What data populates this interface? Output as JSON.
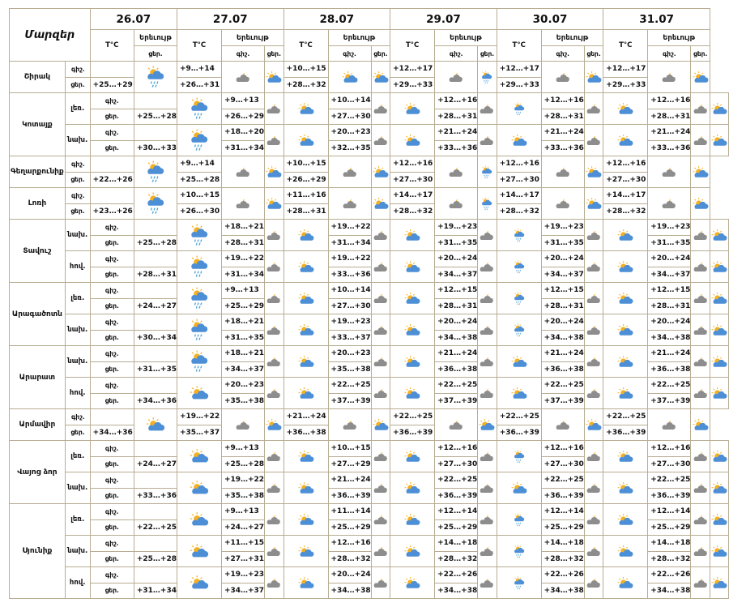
{
  "header": {
    "regions_title": "Մարզեր",
    "temp_label": "T°C",
    "phenomenon_label": "Երեւույթ",
    "night_label": "գիշ.",
    "day_label": "ցեր.",
    "dates": [
      "26.07",
      "27.07",
      "28.07",
      "29.07",
      "30.07",
      "31.07"
    ]
  },
  "regions": [
    {
      "name": "Շիրակ",
      "rows": [
        {
          "sub": "",
          "label": "գիշ.",
          "temps": [
            "",
            "+9…+14",
            "+10…+15",
            "+12…+17",
            "+12…+17",
            "+12…+17"
          ],
          "icons": [
            "sun-cloud-rain-icon",
            "cloud-moon-icon",
            "sun-cloud-icon",
            "cloud-moon-icon",
            "cloud-moon-icon",
            "cloud-moon-icon"
          ]
        },
        {
          "sub": "",
          "label": "ցեր.",
          "temps": [
            "+25…+29",
            "+26…+31",
            "+28…+32",
            "+29…+33",
            "+29…+33",
            "+29…+33"
          ],
          "icons": [
            "",
            "sun-cloud-icon",
            "sun-cloud-icon",
            "sun-cloud-rain-icon",
            "sun-cloud-icon",
            "sun-cloud-icon"
          ]
        }
      ]
    },
    {
      "name": "Կոտայք",
      "rows": [
        {
          "sub": "լեռ.",
          "label": "գիշ.",
          "temps": [
            "",
            "+9…+13",
            "+10…+14",
            "+12…+16",
            "+12…+16",
            "+12…+16"
          ],
          "icons": [
            "sun-cloud-rain-icon",
            "cloud-moon-icon",
            "cloud-moon-icon",
            "cloud-moon-icon",
            "cloud-moon-icon",
            "cloud-moon-icon"
          ]
        },
        {
          "sub": "",
          "label": "ցեր.",
          "temps": [
            "+25…+28",
            "+26…+29",
            "+27…+30",
            "+28…+31",
            "+28…+31",
            "+28…+31"
          ],
          "icons": [
            "",
            "sun-cloud-icon",
            "sun-cloud-icon",
            "sun-cloud-rain-icon",
            "sun-cloud-icon",
            "sun-cloud-icon"
          ]
        },
        {
          "sub": "նախ.",
          "label": "գիշ.",
          "temps": [
            "",
            "+18…+20",
            "+20…+23",
            "+21…+24",
            "+21…+24",
            "+21…+24"
          ],
          "icons": [
            "sun-cloud-rain-icon",
            "cloud-moon-icon",
            "cloud-moon-icon",
            "cloud-moon-icon",
            "cloud-moon-icon",
            "cloud-moon-icon"
          ]
        },
        {
          "sub": "",
          "label": "ցեր.",
          "temps": [
            "+30…+33",
            "+31…+34",
            "+32…+35",
            "+33…+36",
            "+33…+36",
            "+33…+36"
          ],
          "icons": [
            "",
            "sun-cloud-icon",
            "sun-cloud-icon",
            "sun-cloud-icon",
            "sun-cloud-icon",
            "sun-cloud-icon"
          ]
        }
      ]
    },
    {
      "name": "Գեղարքունիք",
      "rows": [
        {
          "sub": "",
          "label": "գիշ.",
          "temps": [
            "",
            "+9…+14",
            "+10…+15",
            "+12…+16",
            "+12…+16",
            "+12…+16"
          ],
          "icons": [
            "sun-cloud-rain-icon",
            "cloud-moon-icon",
            "cloud-moon-icon",
            "cloud-moon-icon",
            "cloud-moon-icon",
            "cloud-moon-icon"
          ]
        },
        {
          "sub": "",
          "label": "ցեր.",
          "temps": [
            "+22…+26",
            "+25…+28",
            "+26…+29",
            "+27…+30",
            "+27…+30",
            "+27…+30"
          ],
          "icons": [
            "",
            "sun-cloud-icon",
            "sun-cloud-icon",
            "sun-cloud-rain-icon",
            "sun-cloud-icon",
            "sun-cloud-icon"
          ]
        }
      ]
    },
    {
      "name": "Լոռի",
      "rows": [
        {
          "sub": "",
          "label": "գիշ.",
          "temps": [
            "",
            "+10…+15",
            "+11…+16",
            "+14…+17",
            "+14…+17",
            "+14…+17"
          ],
          "icons": [
            "sun-cloud-rain-icon",
            "cloud-moon-icon",
            "cloud-moon-icon",
            "cloud-moon-icon",
            "cloud-moon-icon",
            "cloud-moon-icon"
          ]
        },
        {
          "sub": "",
          "label": "ցեր.",
          "temps": [
            "+23…+26",
            "+26…+30",
            "+28…+31",
            "+28…+32",
            "+28…+32",
            "+28…+32"
          ],
          "icons": [
            "",
            "sun-cloud-icon",
            "sun-cloud-icon",
            "sun-cloud-rain-icon",
            "sun-cloud-icon",
            "sun-cloud-icon"
          ]
        }
      ]
    },
    {
      "name": "Տավուշ",
      "rows": [
        {
          "sub": "նախ.",
          "label": "գիշ.",
          "temps": [
            "",
            "+18…+21",
            "+19…+22",
            "+19…+23",
            "+19…+23",
            "+19…+23"
          ],
          "icons": [
            "sun-cloud-rain-icon",
            "cloud-moon-icon",
            "cloud-moon-icon",
            "cloud-moon-icon",
            "cloud-moon-icon",
            "cloud-moon-icon"
          ]
        },
        {
          "sub": "",
          "label": "ցեր.",
          "temps": [
            "+25…+28",
            "+28…+31",
            "+31…+34",
            "+31…+35",
            "+31…+35",
            "+31…+35"
          ],
          "icons": [
            "",
            "sun-cloud-icon",
            "sun-cloud-icon",
            "sun-cloud-rain-icon",
            "sun-cloud-icon",
            "sun-cloud-icon"
          ]
        },
        {
          "sub": "հով.",
          "label": "գիշ.",
          "temps": [
            "",
            "+19…+22",
            "+19…+22",
            "+20…+24",
            "+20…+24",
            "+20…+24"
          ],
          "icons": [
            "sun-cloud-rain-icon",
            "cloud-moon-icon",
            "cloud-moon-icon",
            "cloud-moon-icon",
            "cloud-moon-icon",
            "cloud-moon-icon"
          ]
        },
        {
          "sub": "",
          "label": "ցեր.",
          "temps": [
            "+28…+31",
            "+31…+34",
            "+33…+36",
            "+34…+37",
            "+34…+37",
            "+34…+37"
          ],
          "icons": [
            "",
            "sun-cloud-icon",
            "sun-cloud-icon",
            "sun-cloud-rain-icon",
            "sun-cloud-icon",
            "sun-cloud-icon"
          ]
        }
      ]
    },
    {
      "name": "Արագածոտն",
      "rows": [
        {
          "sub": "լեռ.",
          "label": "գիշ.",
          "temps": [
            "",
            "+9…+13",
            "+10…+14",
            "+12…+15",
            "+12…+15",
            "+12…+15"
          ],
          "icons": [
            "sun-cloud-rain-icon",
            "cloud-moon-icon",
            "cloud-moon-icon",
            "cloud-moon-icon",
            "cloud-moon-icon",
            "cloud-moon-icon"
          ]
        },
        {
          "sub": "",
          "label": "ցեր.",
          "temps": [
            "+24…+27",
            "+25…+29",
            "+27…+30",
            "+28…+31",
            "+28…+31",
            "+28…+31"
          ],
          "icons": [
            "",
            "sun-cloud-icon",
            "sun-cloud-icon",
            "sun-cloud-rain-icon",
            "sun-cloud-icon",
            "sun-cloud-icon"
          ]
        },
        {
          "sub": "նախ.",
          "label": "գիշ.",
          "temps": [
            "",
            "+18…+21",
            "+19…+23",
            "+20…+24",
            "+20…+24",
            "+20…+24"
          ],
          "icons": [
            "sun-cloud-rain-icon",
            "cloud-moon-icon",
            "cloud-moon-icon",
            "cloud-moon-icon",
            "cloud-moon-icon",
            "cloud-moon-icon"
          ]
        },
        {
          "sub": "",
          "label": "ցեր.",
          "temps": [
            "+30…+34",
            "+31…+35",
            "+33…+37",
            "+34…+38",
            "+34…+38",
            "+34…+38"
          ],
          "icons": [
            "",
            "sun-cloud-icon",
            "sun-cloud-icon",
            "sun-cloud-rain-icon",
            "sun-cloud-icon",
            "sun-cloud-icon"
          ]
        }
      ]
    },
    {
      "name": "Արարատ",
      "rows": [
        {
          "sub": "նախ.",
          "label": "գիշ.",
          "temps": [
            "",
            "+18…+21",
            "+20…+23",
            "+21…+24",
            "+21…+24",
            "+21…+24"
          ],
          "icons": [
            "sun-cloud-rain-icon",
            "cloud-moon-icon",
            "cloud-moon-icon",
            "cloud-moon-icon",
            "cloud-moon-icon",
            "cloud-moon-icon"
          ]
        },
        {
          "sub": "",
          "label": "ցեր.",
          "temps": [
            "+31…+35",
            "+34…+37",
            "+35…+38",
            "+36…+38",
            "+36…+38",
            "+36…+38"
          ],
          "icons": [
            "",
            "sun-cloud-icon",
            "sun-cloud-icon",
            "sun-cloud-icon",
            "sun-cloud-icon",
            "sun-cloud-icon"
          ]
        },
        {
          "sub": "հով.",
          "label": "գիշ.",
          "temps": [
            "",
            "+20…+23",
            "+22…+25",
            "+22…+25",
            "+22…+25",
            "+22…+25"
          ],
          "icons": [
            "sun-cloud-icon",
            "cloud-moon-icon",
            "cloud-moon-icon",
            "cloud-moon-icon",
            "cloud-moon-icon",
            "cloud-moon-icon"
          ]
        },
        {
          "sub": "",
          "label": "ցեր.",
          "temps": [
            "+34…+36",
            "+35…+38",
            "+37…+39",
            "+37…+39",
            "+37…+39",
            "+37…+39"
          ],
          "icons": [
            "",
            "sun-cloud-icon",
            "sun-cloud-icon",
            "sun-cloud-icon",
            "sun-cloud-icon",
            "sun-cloud-icon"
          ]
        }
      ]
    },
    {
      "name": "Արմավիր",
      "rows": [
        {
          "sub": "",
          "label": "գիշ.",
          "temps": [
            "",
            "+19…+22",
            "+21…+24",
            "+22…+25",
            "+22…+25",
            "+22…+25"
          ],
          "icons": [
            "sun-cloud-icon",
            "cloud-moon-icon",
            "cloud-moon-icon",
            "cloud-moon-icon",
            "cloud-moon-icon",
            "cloud-moon-icon"
          ]
        },
        {
          "sub": "",
          "label": "ցեր.",
          "temps": [
            "+34…+36",
            "+35…+37",
            "+36…+38",
            "+36…+39",
            "+36…+39",
            "+36…+39"
          ],
          "icons": [
            "",
            "sun-cloud-icon",
            "sun-cloud-icon",
            "sun-cloud-icon",
            "sun-cloud-icon",
            "sun-cloud-icon"
          ]
        }
      ]
    },
    {
      "name": "Վայոց ձոր",
      "rows": [
        {
          "sub": "լեռ.",
          "label": "գիշ.",
          "temps": [
            "",
            "+9…+13",
            "+10…+15",
            "+12…+16",
            "+12…+16",
            "+12…+16"
          ],
          "icons": [
            "sun-cloud-icon",
            "cloud-moon-icon",
            "cloud-moon-icon",
            "cloud-moon-icon",
            "cloud-moon-icon",
            "cloud-moon-icon"
          ]
        },
        {
          "sub": "",
          "label": "ցեր.",
          "temps": [
            "+24…+27",
            "+25…+28",
            "+27…+29",
            "+27…+30",
            "+27…+30",
            "+27…+30"
          ],
          "icons": [
            "",
            "sun-cloud-icon",
            "sun-cloud-icon",
            "sun-cloud-rain-icon",
            "sun-cloud-icon",
            "sun-cloud-icon"
          ]
        },
        {
          "sub": "նախ.",
          "label": "գիշ.",
          "temps": [
            "",
            "+19…+22",
            "+21…+24",
            "+22…+25",
            "+22…+25",
            "+22…+25"
          ],
          "icons": [
            "sun-cloud-icon",
            "cloud-moon-icon",
            "cloud-moon-icon",
            "cloud-moon-icon",
            "cloud-moon-icon",
            "cloud-moon-icon"
          ]
        },
        {
          "sub": "",
          "label": "ցեր.",
          "temps": [
            "+33…+36",
            "+35…+38",
            "+36…+39",
            "+36…+39",
            "+36…+39",
            "+36…+39"
          ],
          "icons": [
            "",
            "sun-cloud-icon",
            "sun-cloud-icon",
            "sun-cloud-icon",
            "sun-cloud-icon",
            "sun-cloud-icon"
          ]
        }
      ]
    },
    {
      "name": "Սյունիք",
      "rows": [
        {
          "sub": "լեռ.",
          "label": "գիշ.",
          "temps": [
            "",
            "+9…+13",
            "+11…+14",
            "+12…+14",
            "+12…+14",
            "+12…+14"
          ],
          "icons": [
            "sun-cloud-icon",
            "cloud-moon-icon",
            "cloud-moon-icon",
            "cloud-moon-icon",
            "cloud-moon-icon",
            "cloud-moon-icon"
          ]
        },
        {
          "sub": "",
          "label": "ցեր.",
          "temps": [
            "+22…+25",
            "+24…+27",
            "+25…+29",
            "+25…+29",
            "+25…+29",
            "+25…+29"
          ],
          "icons": [
            "",
            "sun-cloud-icon",
            "sun-cloud-icon",
            "sun-cloud-rain-icon",
            "sun-cloud-icon",
            "sun-cloud-icon"
          ]
        },
        {
          "sub": "նախ.",
          "label": "գիշ.",
          "temps": [
            "",
            "+11…+15",
            "+12…+16",
            "+14…+18",
            "+14…+18",
            "+14…+18"
          ],
          "icons": [
            "sun-cloud-icon",
            "cloud-moon-icon",
            "cloud-moon-icon",
            "cloud-moon-icon",
            "cloud-moon-icon",
            "cloud-moon-icon"
          ]
        },
        {
          "sub": "",
          "label": "ցեր.",
          "temps": [
            "+25…+28",
            "+27…+31",
            "+28…+32",
            "+28…+32",
            "+28…+32",
            "+28…+32"
          ],
          "icons": [
            "",
            "sun-cloud-icon",
            "sun-cloud-icon",
            "sun-cloud-rain-icon",
            "sun-cloud-icon",
            "sun-cloud-icon"
          ]
        },
        {
          "sub": "հով.",
          "label": "գիշ.",
          "temps": [
            "",
            "+19…+23",
            "+20…+24",
            "+22…+26",
            "+22…+26",
            "+22…+26"
          ],
          "icons": [
            "sun-cloud-icon",
            "cloud-moon-icon",
            "cloud-moon-icon",
            "cloud-moon-icon",
            "cloud-moon-icon",
            "cloud-moon-icon"
          ]
        },
        {
          "sub": "",
          "label": "ցեր.",
          "temps": [
            "+31…+34",
            "+34…+37",
            "+34…+38",
            "+34…+38",
            "+34…+38",
            "+34…+38"
          ],
          "icons": [
            "",
            "sun-cloud-icon",
            "sun-cloud-icon",
            "sun-cloud-rain-icon",
            "sun-cloud-icon",
            "sun-cloud-icon"
          ]
        }
      ]
    }
  ],
  "colors": {
    "border": "#b8ad93",
    "sun": "#f5b01f",
    "cloud_blue": "#4d8fd6",
    "cloud_gray": "#8d8d8d",
    "rain": "#4aa0d8"
  }
}
